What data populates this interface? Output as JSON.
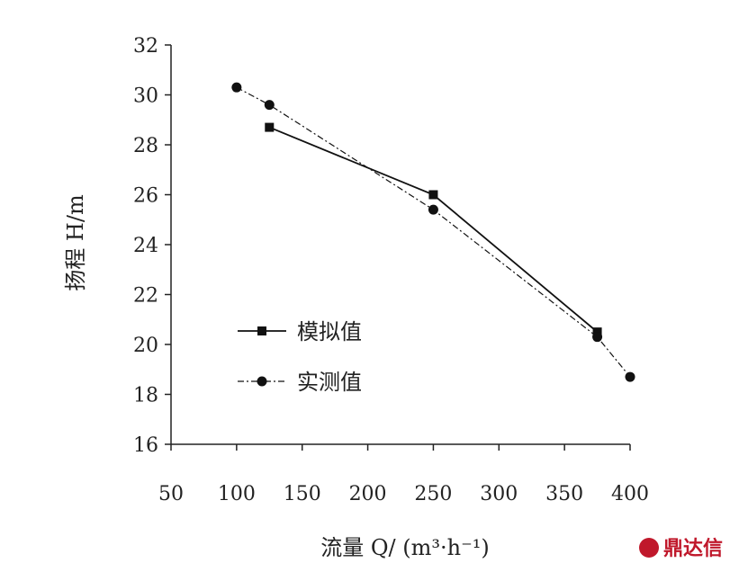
{
  "chart_data": {
    "type": "line",
    "xlabel": "流量 Q/ (m³·h⁻¹)",
    "ylabel": "扬程 H/m",
    "xlim": [
      50,
      400
    ],
    "ylim": [
      16,
      32
    ],
    "xticks": [
      50,
      100,
      150,
      200,
      250,
      300,
      350,
      400
    ],
    "yticks": [
      16,
      18,
      20,
      22,
      24,
      26,
      28,
      30,
      32
    ],
    "grid": false,
    "legend_position": "center-left",
    "series": [
      {
        "name": "模拟值",
        "marker": "square",
        "line_style": "solid",
        "color": "#111111",
        "x": [
          125,
          250,
          375
        ],
        "y": [
          28.7,
          26.0,
          20.5
        ]
      },
      {
        "name": "实测值",
        "marker": "circle",
        "line_style": "dash-dot",
        "color": "#111111",
        "x": [
          100,
          125,
          250,
          375,
          400
        ],
        "y": [
          30.3,
          29.6,
          25.4,
          20.3,
          18.7
        ]
      }
    ]
  },
  "watermark": {
    "text": "鼎达信",
    "color": "#c0182b"
  }
}
